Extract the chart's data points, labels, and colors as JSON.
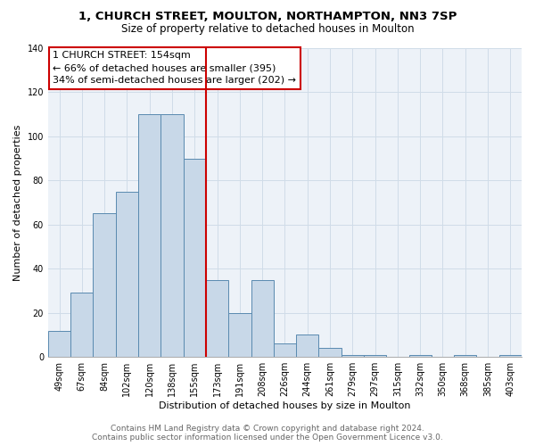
{
  "title": "1, CHURCH STREET, MOULTON, NORTHAMPTON, NN3 7SP",
  "subtitle": "Size of property relative to detached houses in Moulton",
  "xlabel": "Distribution of detached houses by size in Moulton",
  "ylabel": "Number of detached properties",
  "bar_labels": [
    "49sqm",
    "67sqm",
    "84sqm",
    "102sqm",
    "120sqm",
    "138sqm",
    "155sqm",
    "173sqm",
    "191sqm",
    "208sqm",
    "226sqm",
    "244sqm",
    "261sqm",
    "279sqm",
    "297sqm",
    "315sqm",
    "332sqm",
    "350sqm",
    "368sqm",
    "385sqm",
    "403sqm"
  ],
  "bar_values": [
    12,
    29,
    65,
    75,
    110,
    110,
    90,
    35,
    20,
    35,
    6,
    10,
    4,
    1,
    1,
    0,
    1,
    0,
    1,
    0,
    1
  ],
  "bar_color": "#c8d8e8",
  "bar_edge_color": "#5a8ab0",
  "vline_x": 6.5,
  "vline_color": "#cc0000",
  "ylim": [
    0,
    140
  ],
  "annotation_title": "1 CHURCH STREET: 154sqm",
  "annotation_line1": "← 66% of detached houses are smaller (395)",
  "annotation_line2": "34% of semi-detached houses are larger (202) →",
  "annotation_box_color": "#ffffff",
  "annotation_box_edge": "#cc0000",
  "footer_line1": "Contains HM Land Registry data © Crown copyright and database right 2024.",
  "footer_line2": "Contains public sector information licensed under the Open Government Licence v3.0.",
  "title_fontsize": 9.5,
  "subtitle_fontsize": 8.5,
  "axis_label_fontsize": 8,
  "tick_fontsize": 7,
  "annotation_fontsize": 8,
  "footer_fontsize": 6.5,
  "grid_color": "#d0dce8"
}
